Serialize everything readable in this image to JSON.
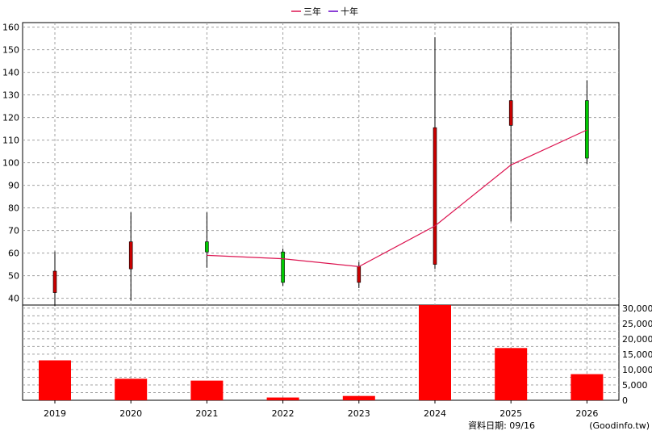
{
  "legend": {
    "items": [
      {
        "label": "三年",
        "color": "#dc1450"
      },
      {
        "label": "十年",
        "color": "#6400c8"
      }
    ]
  },
  "footer": {
    "date_label": "資料日期: 09/16",
    "source_label": "(Goodinfo.tw)"
  },
  "chart_data": [
    {
      "type": "candlestick",
      "x": [
        "2019",
        "2020",
        "2021",
        "2022",
        "2023",
        "2024",
        "2025",
        "2026"
      ],
      "ohlc": [
        {
          "open": 42.5,
          "high": 60.7,
          "low": 36.5,
          "close": 52.0,
          "color": "#c80000"
        },
        {
          "open": 53.0,
          "high": 78.0,
          "low": 39.0,
          "close": 65.0,
          "color": "#c80000"
        },
        {
          "open": 65.0,
          "high": 78.0,
          "low": 53.5,
          "close": 60.5,
          "color": "#00c800"
        },
        {
          "open": 60.5,
          "high": 62.0,
          "low": 45.5,
          "close": 47.0,
          "color": "#00c800"
        },
        {
          "open": 47.0,
          "high": 56.0,
          "low": 44.5,
          "close": 54.0,
          "color": "#c80000"
        },
        {
          "open": 55.0,
          "high": 155.5,
          "low": 53.0,
          "close": 115.5,
          "color": "#c80000"
        },
        {
          "open": 116.5,
          "high": 160.0,
          "low": 74.0,
          "close": 127.5,
          "color": "#c80000"
        },
        {
          "open": 127.5,
          "high": 136.5,
          "low": 99.5,
          "close": 102.0,
          "color": "#00c800"
        }
      ],
      "series": [
        {
          "name": "三年",
          "x": [
            "2021",
            "2022",
            "2023",
            "2024",
            "2025",
            "2026"
          ],
          "values": [
            59.0,
            57.5,
            54.0,
            72.0,
            99.0,
            114.5
          ]
        }
      ],
      "ylim": [
        37,
        162
      ],
      "yticks": [
        40,
        50,
        60,
        70,
        80,
        90,
        100,
        110,
        120,
        130,
        140,
        150,
        160
      ],
      "grid": true,
      "legend_position": "top-center"
    },
    {
      "type": "bar",
      "categories": [
        "2019",
        "2020",
        "2021",
        "2022",
        "2023",
        "2024",
        "2025",
        "2026"
      ],
      "values": [
        13000,
        7000,
        6400,
        900,
        1400,
        31000,
        17000,
        8500
      ],
      "bar_color": "#ff0000",
      "ylim": [
        0,
        31000
      ],
      "yticks": [
        "0",
        "5,000",
        "10,000",
        "15,000",
        "20,000",
        "25,000",
        "30,000"
      ],
      "grid": true
    }
  ]
}
